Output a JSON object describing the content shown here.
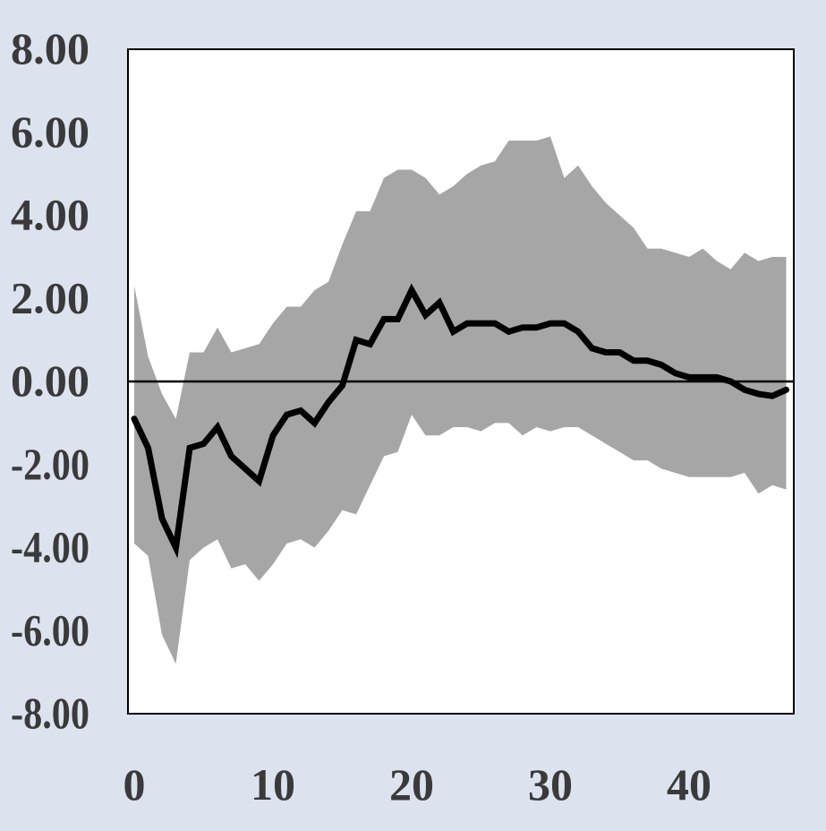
{
  "chart_data": {
    "type": "line",
    "title": "",
    "xlabel": "",
    "ylabel": "",
    "xlim": [
      0,
      48
    ],
    "ylim": [
      -8,
      8
    ],
    "grid": false,
    "legend": "none",
    "x_ticks": [
      0,
      10,
      20,
      30,
      40
    ],
    "x_tick_labels": [
      "0",
      "10",
      "20",
      "30",
      "40"
    ],
    "y_ticks": [
      8,
      6,
      4,
      2,
      0,
      -2,
      -4,
      -6,
      -8
    ],
    "y_tick_labels": [
      "8.00",
      "6.00",
      "4.00",
      "2.00",
      "0.00",
      "-2.00",
      "-4.00",
      "-6.00",
      "-8.00"
    ],
    "zero_line": 0,
    "x": [
      0,
      1,
      2,
      3,
      4,
      5,
      6,
      7,
      8,
      9,
      10,
      11,
      12,
      13,
      14,
      15,
      16,
      17,
      18,
      19,
      20,
      21,
      22,
      23,
      24,
      25,
      26,
      27,
      28,
      29,
      30,
      31,
      32,
      33,
      34,
      35,
      36,
      37,
      38,
      39,
      40,
      41,
      42,
      43,
      44,
      45,
      46,
      47
    ],
    "series": [
      {
        "values": [
          -0.9,
          -1.6,
          -3.3,
          -4.0,
          -1.6,
          -1.5,
          -1.1,
          -1.8,
          -2.1,
          -2.4,
          -1.3,
          -0.8,
          -0.7,
          -1.0,
          -0.5,
          -0.1,
          1.0,
          0.9,
          1.5,
          1.5,
          2.2,
          1.6,
          1.9,
          1.2,
          1.4,
          1.4,
          1.4,
          1.2,
          1.3,
          1.3,
          1.4,
          1.4,
          1.2,
          0.8,
          0.7,
          0.7,
          0.5,
          0.5,
          0.4,
          0.2,
          0.1,
          0.1,
          0.1,
          0.0,
          -0.2,
          -0.3,
          -0.35,
          -0.2
        ]
      }
    ],
    "band": {
      "upper": [
        2.3,
        0.6,
        -0.3,
        -0.9,
        0.7,
        0.7,
        1.3,
        0.7,
        0.8,
        0.9,
        1.4,
        1.8,
        1.8,
        2.2,
        2.4,
        3.3,
        4.1,
        4.1,
        4.9,
        5.1,
        5.1,
        4.9,
        4.5,
        4.7,
        5.0,
        5.2,
        5.3,
        5.8,
        5.8,
        5.8,
        5.9,
        4.9,
        5.2,
        4.7,
        4.3,
        4.0,
        3.7,
        3.2,
        3.2,
        3.1,
        3.0,
        3.2,
        2.9,
        2.7,
        3.1,
        2.9,
        3.0,
        3.0
      ],
      "lower": [
        -3.9,
        -4.2,
        -6.1,
        -6.8,
        -4.3,
        -4.0,
        -3.8,
        -4.5,
        -4.4,
        -4.8,
        -4.4,
        -3.9,
        -3.8,
        -4.0,
        -3.6,
        -3.1,
        -3.2,
        -2.5,
        -1.8,
        -1.7,
        -0.8,
        -1.3,
        -1.3,
        -1.1,
        -1.1,
        -1.2,
        -1.0,
        -1.0,
        -1.3,
        -1.1,
        -1.2,
        -1.1,
        -1.1,
        -1.3,
        -1.5,
        -1.7,
        -1.9,
        -1.9,
        -2.1,
        -2.2,
        -2.3,
        -2.3,
        -2.3,
        -2.3,
        -2.2,
        -2.7,
        -2.5,
        -2.6
      ]
    },
    "colors": {
      "background": "#dce3ef",
      "plot_area": "#ffffff",
      "band": "#a6a6a6",
      "line": "#000000",
      "text": "#3a3a3a"
    }
  }
}
